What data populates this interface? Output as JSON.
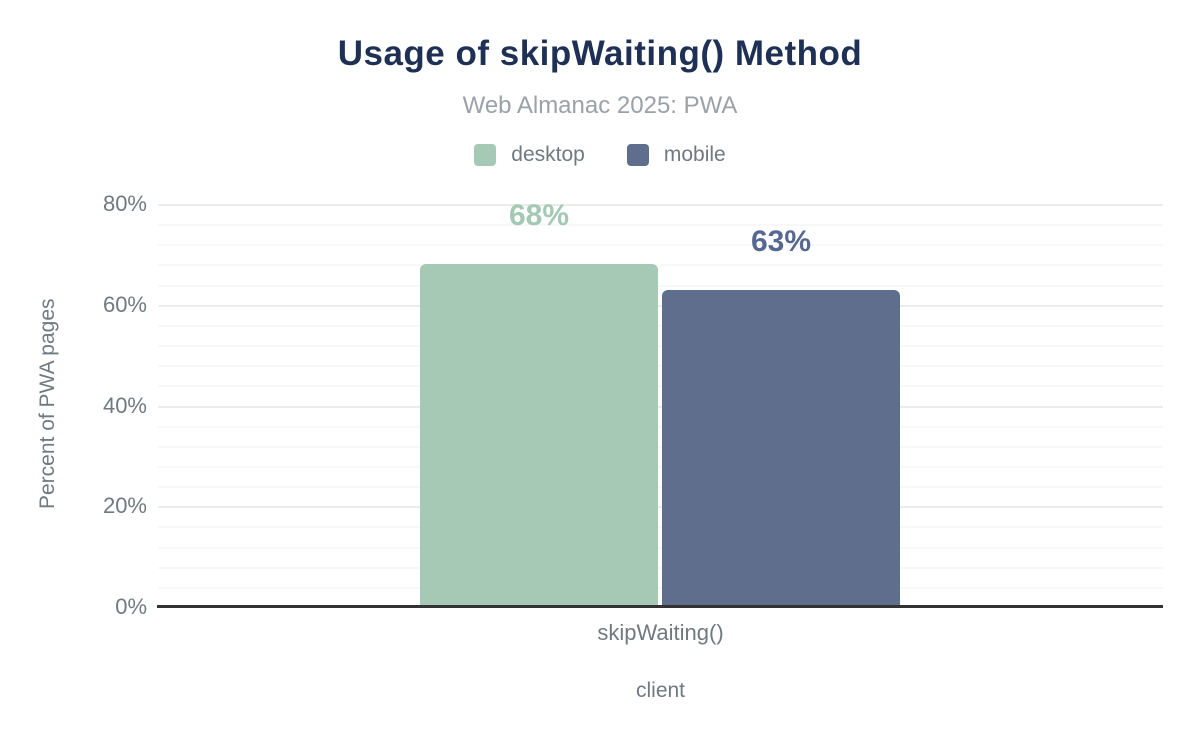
{
  "header": {
    "title": "Usage of skipWaiting() Method",
    "subtitle": "Web Almanac 2025: PWA"
  },
  "colors": {
    "title_text": "#1e3054",
    "subtitle_text": "#9aa1a7",
    "axis_text": "#6f7a80",
    "axis_line": "#333333",
    "grid_major": "#ececec",
    "grid_minor": "#f8f8f8",
    "background": "#ffffff"
  },
  "chart_data": {
    "type": "bar",
    "title": "Usage of skipWaiting() Method",
    "subtitle": "Web Almanac 2025: PWA",
    "categories": [
      "skipWaiting()"
    ],
    "series": [
      {
        "name": "desktop",
        "values": [
          68
        ],
        "data_labels": [
          "68%"
        ],
        "color": "#a5c9b5",
        "label_color": "#a3c8b3"
      },
      {
        "name": "mobile",
        "values": [
          63
        ],
        "data_labels": [
          "63%"
        ],
        "color": "#5f6e8c",
        "label_color": "#56688f"
      }
    ],
    "xlabel": "client",
    "ylabel": "Percent of PWA pages",
    "ylim": [
      0,
      80
    ],
    "yticks": [
      {
        "pct": 0,
        "label": "0%"
      },
      {
        "pct": 20,
        "label": "20%"
      },
      {
        "pct": 40,
        "label": "40%"
      },
      {
        "pct": 60,
        "label": "60%"
      },
      {
        "pct": 80,
        "label": "80%"
      }
    ],
    "minor_grid_step_pct": 4,
    "grid": true,
    "legend_position": "top"
  }
}
